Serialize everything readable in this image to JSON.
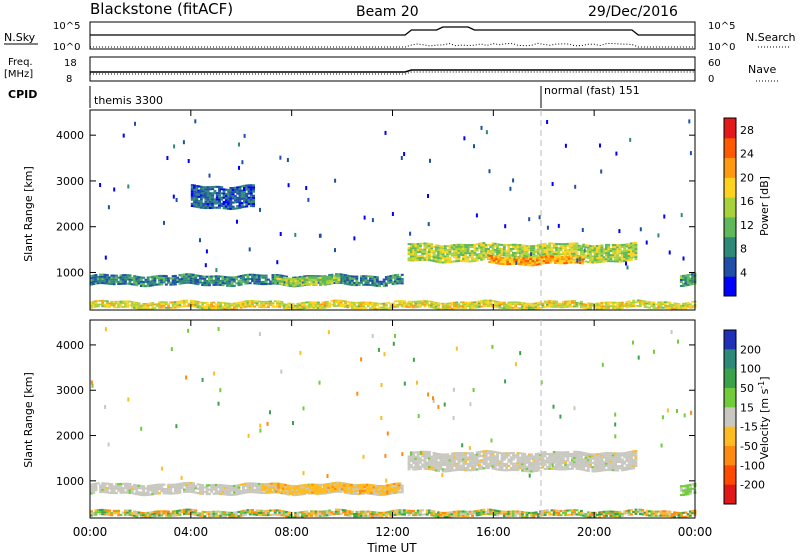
{
  "header": {
    "title": "Blackstone (fitACF)",
    "beam": "Beam 20",
    "date": "29/Dec/2016"
  },
  "top_panels": {
    "nsky_label": "N.Sky",
    "nsearch_label": "N.Search",
    "nsky_ticks": [
      "10^5",
      "10^0"
    ],
    "nsearch_ticks": [
      "10^5",
      "10^0"
    ],
    "freq_label_1": "Freq.",
    "freq_label_2": "[MHz]",
    "freq_ticks": [
      "18",
      "8"
    ],
    "nave_label": "Nave",
    "nave_ticks": [
      "60",
      "0"
    ],
    "cpid_label": "CPID",
    "cpid_segments": [
      {
        "label": "themis 3300",
        "start_hour": 0.0
      },
      {
        "label": "normal (fast) 151",
        "start_hour": 18.0
      }
    ]
  },
  "chart_data": [
    {
      "type": "heatmap",
      "name": "power",
      "xlabel": "",
      "ylabel": "Slant Range [km]",
      "xlim": [
        0,
        24
      ],
      "ylim": [
        180,
        4550
      ],
      "yticks": [
        1000,
        2000,
        3000,
        4000
      ],
      "colorbar": {
        "label": "Power [dB]",
        "ticks": [
          "4",
          "8",
          "12",
          "16",
          "20",
          "24",
          "28"
        ],
        "range": [
          0,
          30
        ],
        "colors": [
          "#0000ff",
          "#1f4fa8",
          "#2e8a78",
          "#5fb85a",
          "#a8d23c",
          "#ffd21e",
          "#ff9a10",
          "#ff5a00",
          "#e41a1a"
        ]
      },
      "bands": [
        {
          "t0": 0.0,
          "t1": 12.4,
          "center_km": 830,
          "width_km": 230,
          "level": 8
        },
        {
          "t0": 7.3,
          "t1": 9.9,
          "center_km": 820,
          "width_km": 190,
          "level": 14
        },
        {
          "t0": 12.6,
          "t1": 21.6,
          "center_km": 1430,
          "width_km": 400,
          "level": 15
        },
        {
          "t0": 15.8,
          "t1": 19.5,
          "center_km": 1260,
          "width_km": 180,
          "level": 21
        },
        {
          "t0": 23.4,
          "t1": 24.0,
          "center_km": 850,
          "width_km": 260,
          "level": 10
        },
        {
          "t0": 0.0,
          "t1": 24.0,
          "center_km": 290,
          "width_km": 160,
          "level": 17
        },
        {
          "t0": 4.0,
          "t1": 6.5,
          "center_km": 2650,
          "width_km": 500,
          "level": 6
        }
      ]
    },
    {
      "type": "heatmap",
      "name": "velocity",
      "xlabel": "Time UT",
      "ylabel": "Slant Range [km]",
      "xlim": [
        0,
        24
      ],
      "ylim": [
        180,
        4550
      ],
      "xticks": [
        "00:00",
        "04:00",
        "08:00",
        "12:00",
        "16:00",
        "20:00",
        "00:00"
      ],
      "yticks": [
        1000,
        2000,
        3000,
        4000
      ],
      "colorbar": {
        "label": "Velocity [m s^-1]",
        "ticks": [
          "200",
          "100",
          "50",
          "15",
          "-15",
          "-50",
          "-100",
          "-200"
        ],
        "colors": [
          "#2030b8",
          "#2e8a78",
          "#3aa24a",
          "#70cc3a",
          "#c8c8c0",
          "#ffbb22",
          "#ff8a10",
          "#ff4a00",
          "#e01818"
        ]
      },
      "bands": [
        {
          "t0": 0.0,
          "t1": 12.4,
          "center_km": 820,
          "width_km": 240,
          "class": "ground-scatter"
        },
        {
          "t0": 6.8,
          "t1": 12.2,
          "center_km": 830,
          "width_km": 220,
          "class": "negative"
        },
        {
          "t0": 12.6,
          "t1": 21.6,
          "center_km": 1430,
          "width_km": 420,
          "class": "ground-scatter"
        },
        {
          "t0": 0.0,
          "t1": 24.0,
          "center_km": 280,
          "width_km": 140,
          "class": "mixed"
        },
        {
          "t0": 23.4,
          "t1": 24.0,
          "center_km": 820,
          "width_km": 240,
          "class": "positive"
        }
      ]
    }
  ]
}
